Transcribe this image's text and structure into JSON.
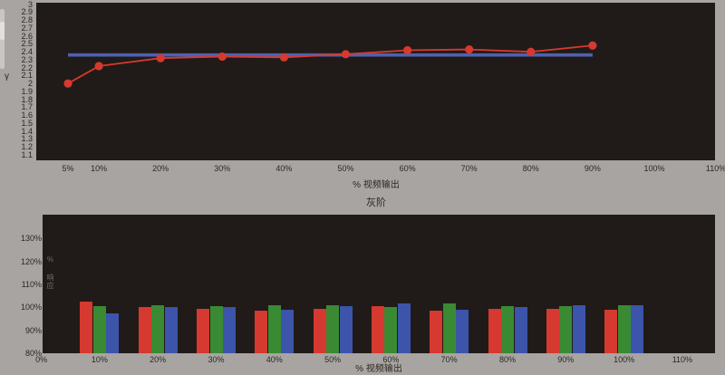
{
  "ui": {
    "background_color": "#a8a4a1",
    "plot_background_color": "#201b18",
    "accent_red": "#d6392f",
    "accent_green": "#3a8a34",
    "accent_blue": "#3c55aa",
    "target_line_blue": "#5061b0"
  },
  "gamma_chart": {
    "ylabel": "γ",
    "xlabel": "% 视频输出",
    "ytick_labels": [
      "3",
      "2.9",
      "2.8",
      "2.7",
      "2.6",
      "2.5",
      "2.4",
      "2.3",
      "2.2",
      "2.1",
      "2",
      "1.9",
      "1.8",
      "1.7",
      "1.6",
      "1.5",
      "1.4",
      "1.3",
      "1.2",
      "1.1"
    ],
    "xtick_labels": [
      "5%",
      "10%",
      "20%",
      "30%",
      "40%",
      "50%",
      "60%",
      "70%",
      "80%",
      "90%",
      "100%",
      "110%"
    ]
  },
  "grayscale_chart": {
    "title": "灰阶",
    "ylabel": "% 响应",
    "xlabel": "% 视频输出",
    "ytick_labels": [
      "130%",
      "120%",
      "110%",
      "100%",
      "90%",
      "80%"
    ],
    "xtick_labels": [
      "0%",
      "10%",
      "20%",
      "30%",
      "40%",
      "50%",
      "60%",
      "70%",
      "80%",
      "90%",
      "100%",
      "110%"
    ]
  },
  "chart_data": [
    {
      "type": "line",
      "title": "",
      "xlabel": "% 视频输出",
      "ylabel": "γ",
      "xlim": [
        0,
        110
      ],
      "ylim": [
        1.1,
        3.0
      ],
      "grid": false,
      "legend": "none",
      "series": [
        {
          "name": "measured-gamma",
          "color": "#d6392f",
          "marker": "circle",
          "x": [
            5,
            10,
            20,
            30,
            40,
            50,
            60,
            70,
            80,
            90
          ],
          "y": [
            2.0,
            2.22,
            2.32,
            2.34,
            2.33,
            2.37,
            2.42,
            2.43,
            2.4,
            2.48
          ]
        },
        {
          "name": "target-gamma",
          "color": "#5061b0",
          "marker": "none",
          "x": [
            5,
            90
          ],
          "y": [
            2.36,
            2.36
          ]
        }
      ]
    },
    {
      "type": "bar",
      "title": "灰阶",
      "xlabel": "% 视频输出",
      "ylabel": "% 响应",
      "xlim": [
        0,
        115
      ],
      "ylim": [
        80,
        140
      ],
      "ytick_step": 10,
      "grid": false,
      "legend": "none",
      "categories": [
        "10%",
        "20%",
        "30%",
        "40%",
        "50%",
        "60%",
        "70%",
        "80%",
        "90%",
        "100%"
      ],
      "category_positions": [
        10,
        20,
        30,
        40,
        50,
        60,
        70,
        80,
        90,
        100
      ],
      "baseline": 80,
      "series": [
        {
          "name": "red",
          "color": "#d6392f",
          "values": [
            102.5,
            100.0,
            99.5,
            98.5,
            99.5,
            100.5,
            98.5,
            99.5,
            99.5,
            99.0
          ]
        },
        {
          "name": "green",
          "color": "#3a8a34",
          "values": [
            100.5,
            101.0,
            100.5,
            101.0,
            101.0,
            100.0,
            101.5,
            100.5,
            100.5,
            101.0
          ]
        },
        {
          "name": "blue",
          "color": "#3c55aa",
          "values": [
            97.5,
            100.0,
            100.0,
            99.0,
            100.5,
            101.5,
            99.0,
            100.0,
            101.0,
            101.0
          ]
        }
      ]
    }
  ]
}
